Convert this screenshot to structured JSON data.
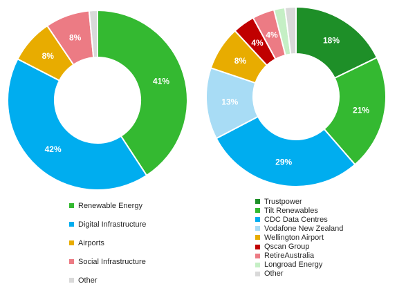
{
  "chart_data": [
    {
      "type": "pie",
      "donut": true,
      "title": "",
      "categories": [
        "Renewable Energy",
        "Digital Infrastructure",
        "Airports",
        "Social Infrastructure",
        "Other"
      ],
      "values": [
        41,
        42,
        8,
        8,
        1.5
      ],
      "data_labels": [
        "41%",
        "42%",
        "8%",
        "8%",
        ""
      ],
      "colors": [
        "#34b931",
        "#00adef",
        "#e8ac00",
        "#ec7b84",
        "#d9d9d9"
      ],
      "legend_position": "bottom"
    },
    {
      "type": "pie",
      "donut": true,
      "title": "",
      "categories": [
        "Trustpower",
        "Tilt Renewables",
        "CDC Data Centres",
        "Vodafone New Zealand",
        "Wellington Airport",
        "Qscan Group",
        "RetireAustralia",
        "Longroad Energy",
        "Other"
      ],
      "values": [
        18,
        21,
        29,
        13,
        8,
        4,
        4,
        2,
        2
      ],
      "data_labels": [
        "18%",
        "21%",
        "29%",
        "13%",
        "8%",
        "4%",
        "4%",
        "",
        ""
      ],
      "colors": [
        "#1e8f28",
        "#34b931",
        "#00adef",
        "#a8dcf5",
        "#e8ac00",
        "#c00000",
        "#ec7b84",
        "#c5efc5",
        "#d9d9d9"
      ],
      "legend_position": "bottom"
    }
  ]
}
